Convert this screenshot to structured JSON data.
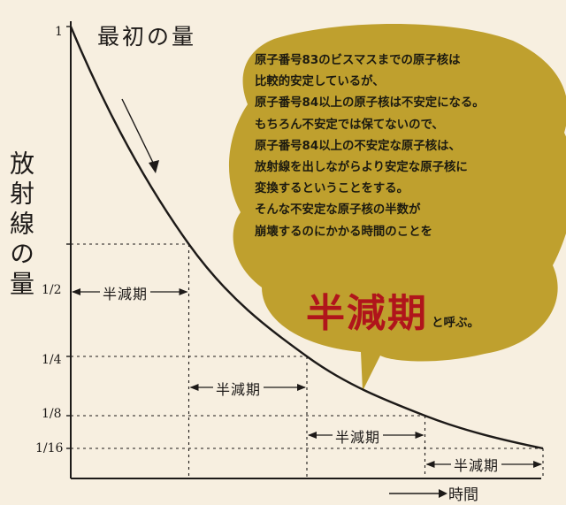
{
  "chart_data": {
    "type": "line",
    "title": "最初の量",
    "ylabel": "放射線の量",
    "xlabel": "時間",
    "x": [
      0,
      1,
      2,
      3,
      4
    ],
    "y": [
      1,
      0.5,
      0.25,
      0.125,
      0.0625
    ],
    "ytick_labels": [
      "1",
      "1/2",
      "1/4",
      "1/8",
      "1/16"
    ],
    "interval_label": "半減期",
    "grid": false
  },
  "bubble": {
    "color": "#bfa02e",
    "lines": [
      "原子番号83のビスマスまでの原子核は",
      "比較的安定しているが、",
      "原子番号84以上の原子核は不安定になる。",
      "もちろん不安定では保てないので、",
      "原子番号84以上の不安定な原子核は、",
      "放射線を出しながらより安定な原子核に",
      "変換するということをする。",
      "そんな不安定な原子核の半数が",
      "崩壊するのにかかる時間のことを"
    ],
    "emphasis": "半減期",
    "emphasis_color": "#b0151b",
    "suffix": "と呼ぶ。"
  }
}
